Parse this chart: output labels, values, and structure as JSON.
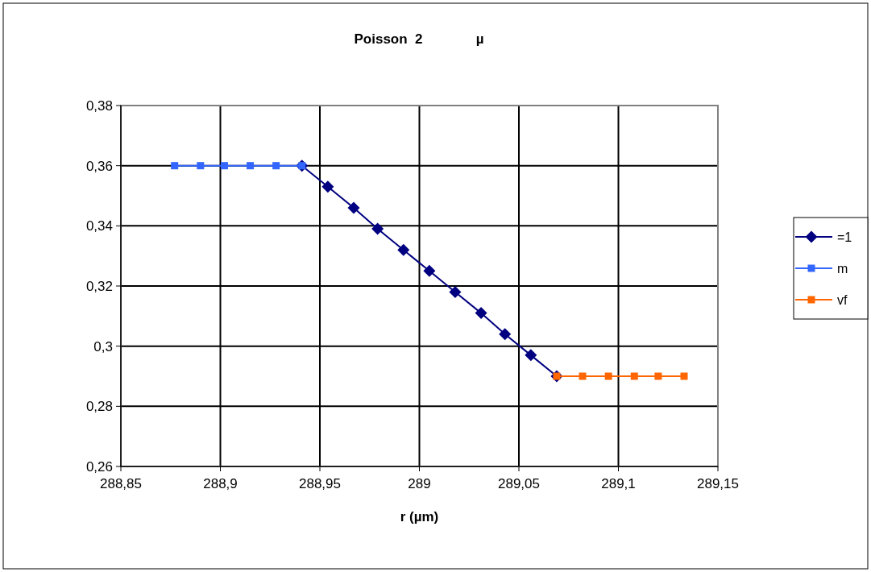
{
  "chart_data": {
    "type": "line",
    "title": "Poisson  2              µ",
    "xlabel": "r (µm)",
    "xlim": [
      288.85,
      289.15
    ],
    "xticks": [
      {
        "value": 288.85,
        "label": "288,85"
      },
      {
        "value": 288.9,
        "label": "288,9"
      },
      {
        "value": 288.95,
        "label": "288,95"
      },
      {
        "value": 289,
        "label": "289"
      },
      {
        "value": 289.05,
        "label": "289,05"
      },
      {
        "value": 289.1,
        "label": "289,1"
      },
      {
        "value": 289.15,
        "label": "289,15"
      }
    ],
    "ylim": [
      0.26,
      0.38
    ],
    "yticks": [
      {
        "value": 0.26,
        "label": "0,26"
      },
      {
        "value": 0.28,
        "label": "0,28"
      },
      {
        "value": 0.3,
        "label": "0,3"
      },
      {
        "value": 0.32,
        "label": "0,32"
      },
      {
        "value": 0.34,
        "label": "0,34"
      },
      {
        "value": 0.36,
        "label": "0,36"
      },
      {
        "value": 0.38,
        "label": "0,38"
      }
    ],
    "grid": true,
    "legend": "right",
    "line_style": "solid",
    "series": [
      {
        "name": "=1",
        "color": "#000080",
        "marker": "diamond",
        "x": [
          288.941,
          288.954,
          288.967,
          288.979,
          288.992,
          289.005,
          289.018,
          289.031,
          289.043,
          289.056,
          289.069
        ],
        "values": [
          0.36,
          0.353,
          0.346,
          0.339,
          0.332,
          0.325,
          0.318,
          0.311,
          0.304,
          0.297,
          0.29
        ]
      },
      {
        "name": "m",
        "color": "#3366ff",
        "marker": "square",
        "x": [
          288.877,
          288.89,
          288.902,
          288.915,
          288.928,
          288.941
        ],
        "values": [
          0.36,
          0.36,
          0.36,
          0.36,
          0.36,
          0.36
        ]
      },
      {
        "name": "vf",
        "color": "#ff6600",
        "marker": "square",
        "x": [
          289.069,
          289.082,
          289.095,
          289.108,
          289.12,
          289.133
        ],
        "values": [
          0.29,
          0.29,
          0.29,
          0.29,
          0.29,
          0.29
        ]
      }
    ]
  }
}
